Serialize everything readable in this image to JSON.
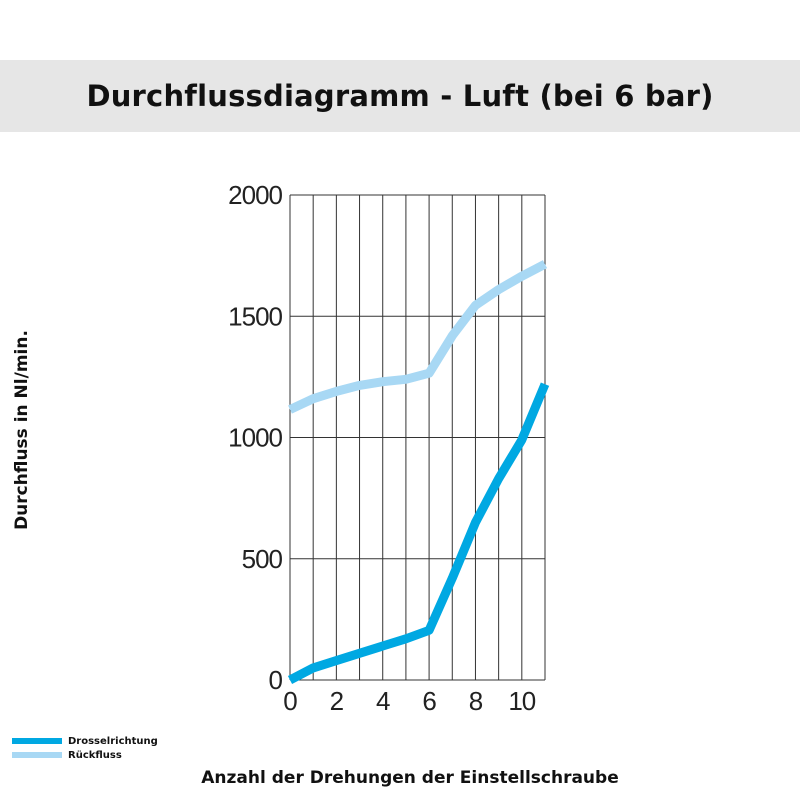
{
  "header": {
    "title": "Durchflussdiagramm - Luft (bei 6 bar)"
  },
  "colors": {
    "drossel": "#00a8e2",
    "rueck": "#a8d8f4",
    "grid": "#333333",
    "header_bg": "#e6e6e6"
  },
  "chart_data": {
    "type": "line",
    "title": "Durchflussdiagramm - Luft (bei 6 bar)",
    "xlabel": "Anzahl der Drehungen der Einstellschraube",
    "ylabel": "Durchfluss in Nl/min.",
    "xlim": [
      0,
      11
    ],
    "ylim": [
      0,
      2000
    ],
    "x_ticks": [
      0,
      2,
      4,
      6,
      8,
      10
    ],
    "x_tick_labels": [
      "0",
      "2",
      "4",
      "6",
      "8",
      "10"
    ],
    "y_ticks": [
      0,
      500,
      1000,
      1500,
      2000
    ],
    "y_tick_labels": [
      "0",
      "500",
      "1000",
      "1500",
      "2000"
    ],
    "grid": true,
    "legend": "bottom-left",
    "series": [
      {
        "name": "Drosselrichtung",
        "color": "#00a8e2",
        "x": [
          0,
          1,
          2,
          3,
          4,
          5,
          6,
          7,
          8,
          9,
          10,
          11
        ],
        "y": [
          0,
          50,
          80,
          110,
          140,
          170,
          205,
          420,
          650,
          830,
          990,
          1220
        ]
      },
      {
        "name": "Rückfluss",
        "color": "#a8d8f4",
        "x": [
          0,
          1,
          2,
          3,
          4,
          5,
          6,
          7,
          8,
          9,
          10,
          11
        ],
        "y": [
          1115,
          1160,
          1190,
          1215,
          1230,
          1240,
          1265,
          1420,
          1545,
          1610,
          1665,
          1715
        ]
      }
    ]
  }
}
